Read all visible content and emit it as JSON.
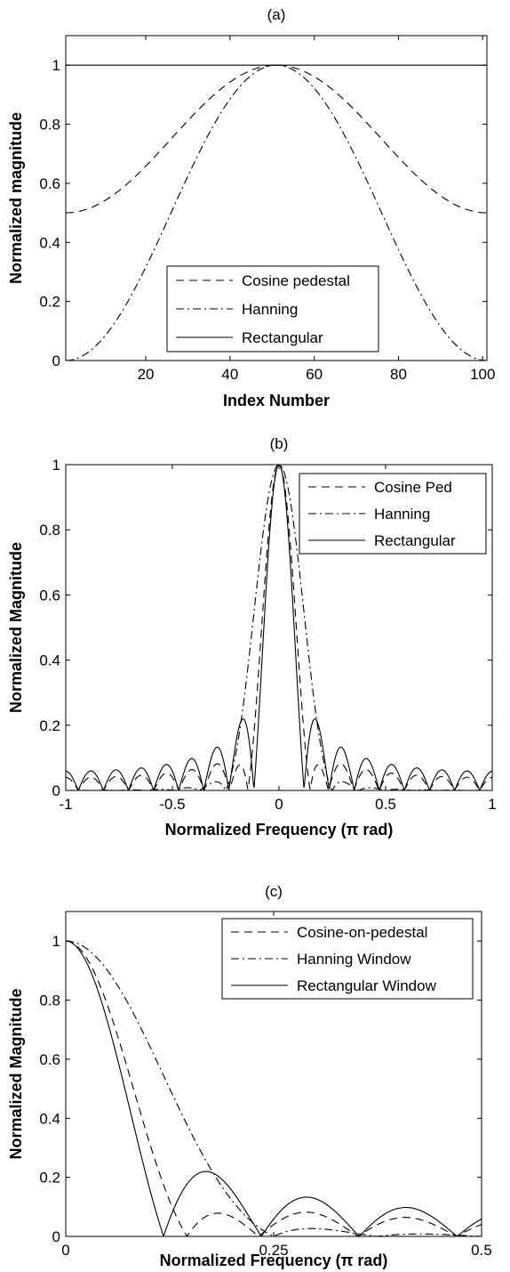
{
  "chart_data": [
    {
      "type": "line",
      "title": "(a)",
      "xlabel": "Index Number",
      "ylabel": "Normalized magnitude",
      "xlim": [
        1,
        101
      ],
      "ylim": [
        0,
        1.1
      ],
      "xticks": [
        20,
        40,
        60,
        80,
        100
      ],
      "yticks": [
        0,
        0.2,
        0.4,
        0.6,
        0.8,
        1
      ],
      "xtick_labels": [
        "20",
        "40",
        "60",
        "80",
        "100"
      ],
      "ytick_labels": [
        "0",
        "0.2",
        "0.4",
        "0.6",
        "0.8",
        "1"
      ],
      "grid": false,
      "legend": "bottom-center",
      "series": [
        {
          "name": "Cosine pedestal",
          "style": "dashed",
          "generator": "cosine_pedestal_window",
          "points": 101,
          "center": 51
        },
        {
          "name": "Hanning",
          "style": "dashdot",
          "generator": "hanning_window",
          "points": 101,
          "center": 51
        },
        {
          "name": "Rectangular",
          "style": "solid",
          "generator": "rectangular_window",
          "points": 101
        }
      ]
    },
    {
      "type": "line",
      "title": "(b)",
      "xlabel": "Normalized Frequency (π rad)",
      "ylabel": "Normalized Magnitude",
      "xlim": [
        -1,
        1
      ],
      "ylim": [
        0,
        1
      ],
      "xticks": [
        -1,
        -0.5,
        0,
        0.5,
        1
      ],
      "yticks": [
        0,
        0.2,
        0.4,
        0.6,
        0.8,
        1
      ],
      "xtick_labels": [
        "-1",
        "-0.5",
        "0",
        "0.5",
        "1"
      ],
      "ytick_labels": [
        "0",
        "0.2",
        "0.4",
        "0.6",
        "0.8",
        "1"
      ],
      "grid": false,
      "legend": "top-right",
      "series": [
        {
          "name": "Cosine Ped",
          "style": "dashed",
          "generator": "fft_magnitude_cosine_pedestal",
          "N": 17
        },
        {
          "name": "Hanning",
          "style": "dashdot",
          "generator": "fft_magnitude_hanning",
          "N": 17
        },
        {
          "name": "Rectangular",
          "style": "solid",
          "generator": "fft_magnitude_rectangular",
          "N": 17
        }
      ]
    },
    {
      "type": "line",
      "title": "(c)",
      "xlabel": "Normalized Frequency (π rad)",
      "ylabel": "Normalized Magnitude",
      "xlim": [
        0,
        0.5
      ],
      "ylim": [
        0,
        1.1
      ],
      "xticks": [
        0,
        0.25,
        0.5
      ],
      "yticks": [
        0,
        0.2,
        0.4,
        0.6,
        0.8,
        1
      ],
      "xtick_labels": [
        "0",
        "0.25",
        "0.5"
      ],
      "ytick_labels": [
        "0",
        "0.2",
        "0.4",
        "0.6",
        "0.8",
        "1"
      ],
      "grid": false,
      "legend": "top-right",
      "series": [
        {
          "name": "Cosine-on-pedestal",
          "style": "dashed",
          "generator": "fft_magnitude_cosine_pedestal",
          "N": 17
        },
        {
          "name": "Hanning Window",
          "style": "dashdot",
          "generator": "fft_magnitude_hanning",
          "N": 17
        },
        {
          "name": "Rectangular Window",
          "style": "solid",
          "generator": "fft_magnitude_rectangular",
          "N": 17
        }
      ]
    }
  ]
}
